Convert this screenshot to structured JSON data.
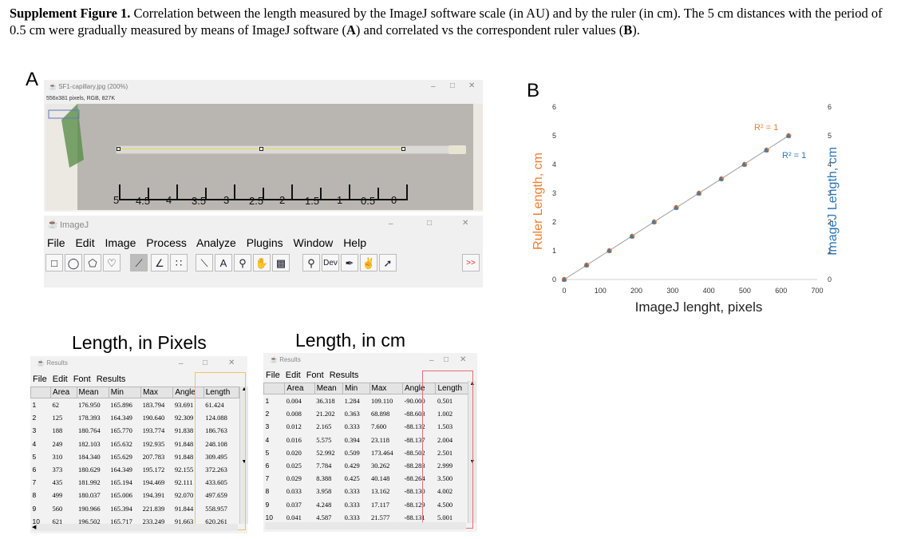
{
  "caption": {
    "label": "Supplement Figure 1.",
    "part1": " Correlation between the length measured by the ImageJ software scale (in AU) and by the ruler (in cm). The 5 cm distances with the period of 0.5 cm were gradually measured by means of ImageJ software (",
    "a": "A",
    "part2": ") and correlated vs the correspondent ruler values (",
    "b": "B",
    "part3": ")."
  },
  "panel_a": {
    "letter": "A",
    "image_window": {
      "title": "SF1-capillary.jpg (200%)",
      "subtitle": "556x381 pixels, RGB, 827K",
      "ruler_labels": [
        "5",
        "4.5",
        "4",
        "3.5",
        "3",
        "2.5",
        "2",
        "1.5",
        "1",
        "0.5",
        "0"
      ]
    },
    "imagej_window": {
      "title": "ImageJ",
      "menu": [
        "File",
        "Edit",
        "Image",
        "Process",
        "Analyze",
        "Plugins",
        "Window",
        "Help"
      ],
      "tools": [
        "rectangle-tool",
        "oval-tool",
        "polygon-tool",
        "freehand-tool",
        "line-tool",
        "angle-tool",
        "point-tool",
        "wand-tool",
        "text-tool",
        "magnifier-tool",
        "hand-tool",
        "color-picker-tool",
        "lut-tool",
        "dev-tool",
        "brush-tool",
        "dropper-tool",
        "arrow-tool",
        "more-tools"
      ],
      "dev_label": "Dev",
      "more_label": ">>"
    },
    "pixels_title": "Length, in Pixels",
    "cm_title": "Length, in cm",
    "results_pixels": {
      "title": "Results",
      "menu": [
        "File",
        "Edit",
        "Font",
        "Results"
      ],
      "columns": [
        "",
        "Area",
        "Mean",
        "Min",
        "Max",
        "Angle",
        "Length"
      ],
      "rows": [
        [
          "1",
          "62",
          "176.950",
          "165.896",
          "183.794",
          "93.691",
          "61.424"
        ],
        [
          "2",
          "125",
          "178.393",
          "164.349",
          "190.640",
          "92.309",
          "124.088"
        ],
        [
          "3",
          "188",
          "180.764",
          "165.770",
          "193.774",
          "91.838",
          "186.763"
        ],
        [
          "4",
          "249",
          "182.103",
          "165.632",
          "192.935",
          "91.848",
          "248.108"
        ],
        [
          "5",
          "310",
          "184.340",
          "165.629",
          "207.783",
          "91.848",
          "309.495"
        ],
        [
          "6",
          "373",
          "180.629",
          "164.349",
          "195.172",
          "92.155",
          "372.263"
        ],
        [
          "7",
          "435",
          "181.992",
          "165.194",
          "194.469",
          "92.111",
          "433.605"
        ],
        [
          "8",
          "499",
          "180.037",
          "165.006",
          "194.391",
          "92.070",
          "497.659"
        ],
        [
          "9",
          "560",
          "190.966",
          "165.394",
          "221.839",
          "91.844",
          "558.957"
        ],
        [
          "10",
          "621",
          "196.502",
          "165.717",
          "233.249",
          "91.663",
          "620.261"
        ]
      ]
    },
    "results_cm": {
      "title": "Results",
      "menu": [
        "File",
        "Edit",
        "Font",
        "Results"
      ],
      "columns": [
        "",
        "Area",
        "Mean",
        "Min",
        "Max",
        "Angle",
        "Length"
      ],
      "rows": [
        [
          "1",
          "0.004",
          "36.318",
          "1.284",
          "109.110",
          "-90.000",
          "0.501"
        ],
        [
          "2",
          "0.008",
          "21.202",
          "0.363",
          "68.898",
          "-88.603",
          "1.002"
        ],
        [
          "3",
          "0.012",
          "2.165",
          "0.333",
          "7.600",
          "-88.132",
          "1.503"
        ],
        [
          "4",
          "0.016",
          "5.575",
          "0.394",
          "23.118",
          "-88.137",
          "2.004"
        ],
        [
          "5",
          "0.020",
          "52.992",
          "0.509",
          "173.464",
          "-88.502",
          "2.501"
        ],
        [
          "6",
          "0.025",
          "7.784",
          "0.429",
          "30.262",
          "-88.283",
          "2.999"
        ],
        [
          "7",
          "0.029",
          "8.388",
          "0.425",
          "40.148",
          "-88.264",
          "3.500"
        ],
        [
          "8",
          "0.033",
          "3.958",
          "0.333",
          "13.162",
          "-88.130",
          "4.002"
        ],
        [
          "9",
          "0.037",
          "4.248",
          "0.333",
          "17.117",
          "-88.129",
          "4.500"
        ],
        [
          "10",
          "0.041",
          "4.587",
          "0.333",
          "21.577",
          "-88.131",
          "5.001"
        ]
      ]
    }
  },
  "panel_b": {
    "letter": "B"
  },
  "chart_data": {
    "type": "scatter",
    "title": "",
    "xlabel": "ImageJ lenght, pixels",
    "ylabel": "Ruler Length, cm",
    "y2label": "ImageJ Length, cm",
    "xlim": [
      0,
      700
    ],
    "ylim": [
      0,
      6
    ],
    "y2lim": [
      0,
      6
    ],
    "x_ticks": [
      "0",
      "100",
      "200",
      "300",
      "400",
      "500",
      "600",
      "700"
    ],
    "y_ticks": [
      "0",
      "1",
      "2",
      "3",
      "4",
      "5",
      "6"
    ],
    "y2_ticks": [
      "0",
      "1",
      "2",
      "3",
      "4",
      "5",
      "6"
    ],
    "grid": false,
    "colors": {
      "series1": "#ed7d31",
      "series2": "#2e75b6",
      "trend": "#a6a6a6"
    },
    "annotations": [
      {
        "text": "R² = 1",
        "color": "#ed7d31"
      },
      {
        "text": "R² = 1",
        "color": "#2e75b6"
      }
    ],
    "series": [
      {
        "axis": "left",
        "marker": "circle",
        "x": [
          0,
          62,
          125,
          188,
          249,
          310,
          373,
          435,
          499,
          560,
          621
        ],
        "y": [
          0,
          0.5,
          1.0,
          1.5,
          2.0,
          2.5,
          3.0,
          3.5,
          4.0,
          4.5,
          5.0
        ]
      },
      {
        "axis": "right",
        "marker": "triangle",
        "x": [
          0,
          61.424,
          124.088,
          186.763,
          248.108,
          309.495,
          372.263,
          433.605,
          497.659,
          558.957,
          620.261
        ],
        "y": [
          0,
          0.501,
          1.002,
          1.503,
          2.004,
          2.501,
          2.999,
          3.5,
          4.002,
          4.5,
          5.001
        ]
      }
    ]
  }
}
